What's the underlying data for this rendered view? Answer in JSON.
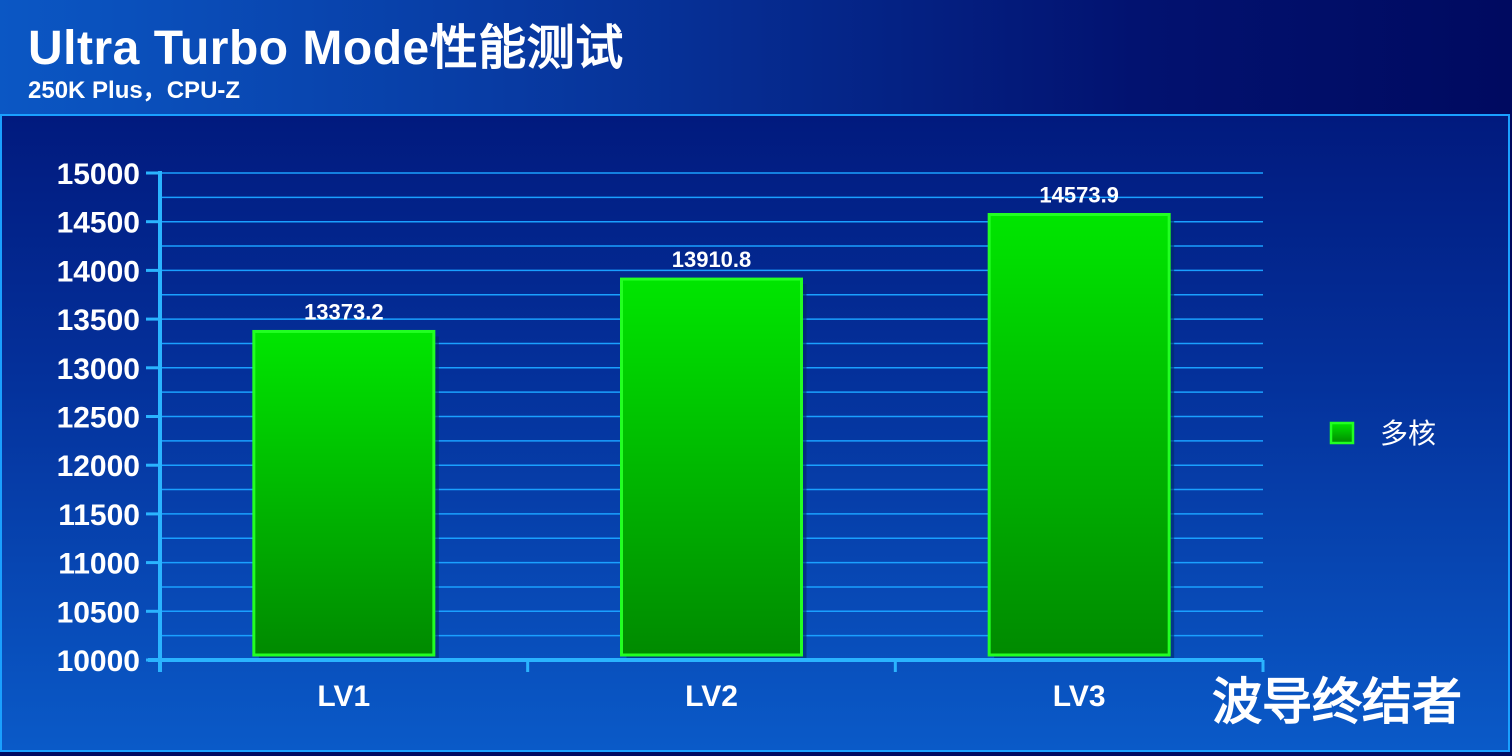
{
  "header": {
    "title": "Ultra Turbo Mode性能测试",
    "subtitle": "250K Plus，CPU-Z"
  },
  "watermark": "波导终结者",
  "colors": {
    "bar_top": "#00e600",
    "bar_bottom": "#008a00",
    "bar_border": "#22ff22",
    "grid": "#1aa0ff",
    "axis": "#2ab4ff",
    "text": "#ffffff"
  },
  "chart_data": {
    "type": "bar",
    "title": "Ultra Turbo Mode性能测试",
    "subtitle": "250K Plus，CPU-Z",
    "categories": [
      "LV1",
      "LV2",
      "LV3"
    ],
    "series": [
      {
        "name": "多核",
        "values": [
          13373.2,
          13910.8,
          14573.9
        ]
      }
    ],
    "data_labels": [
      "13373.2",
      "13910.8",
      "14573.9"
    ],
    "ylim": [
      10000,
      15000
    ],
    "yticks": [
      10000,
      10500,
      11000,
      11500,
      12000,
      12500,
      13000,
      13500,
      14000,
      14500,
      15000
    ],
    "grid": true,
    "legend_position": "right"
  }
}
